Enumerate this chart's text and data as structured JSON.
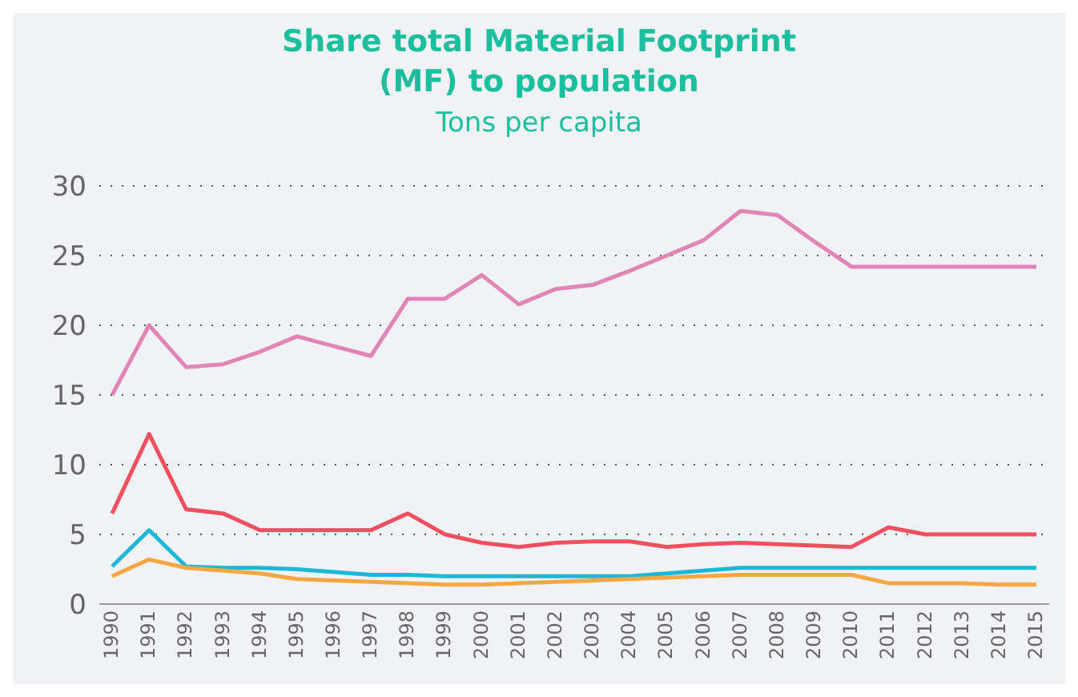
{
  "chart_data": {
    "type": "line",
    "title": "Share total Material Footprint (MF) to population",
    "subtitle": "Tons per capita",
    "categories": [
      "1990",
      "1991",
      "1992",
      "1993",
      "1994",
      "1995",
      "1996",
      "1997",
      "1998",
      "1999",
      "2000",
      "2001",
      "2002",
      "2003",
      "2004",
      "2005",
      "2006",
      "2007",
      "2008",
      "2009",
      "2010",
      "2011",
      "2012",
      "2013",
      "2014",
      "2015"
    ],
    "series": [
      {
        "color": "#e085b5",
        "values": [
          15,
          20,
          17,
          17.2,
          18.1,
          19.2,
          18.5,
          17.8,
          21.9,
          21.9,
          23.6,
          21.5,
          22.6,
          22.9,
          23.9,
          25,
          26.1,
          28.2,
          27.9,
          26,
          24.2,
          24.2,
          24.2,
          24.2,
          24.2,
          24.2
        ]
      },
      {
        "color": "#f0505e",
        "values": [
          6.5,
          12.2,
          6.8,
          6.5,
          5.3,
          5.3,
          5.3,
          5.3,
          6.5,
          5.0,
          4.4,
          4.1,
          4.4,
          4.5,
          4.5,
          4.1,
          4.3,
          4.4,
          4.3,
          4.2,
          4.1,
          5.5,
          5.0,
          5.0,
          5.0,
          5.0
        ]
      },
      {
        "color": "#1cb8d8",
        "values": [
          2.7,
          5.3,
          2.7,
          2.6,
          2.6,
          2.5,
          2.3,
          2.1,
          2.1,
          2.0,
          2.0,
          2.0,
          2.0,
          2.0,
          2.0,
          2.2,
          2.4,
          2.6,
          2.6,
          2.6,
          2.6,
          2.6,
          2.6,
          2.6,
          2.6,
          2.6
        ]
      },
      {
        "color": "#f5a742",
        "values": [
          2.0,
          3.2,
          2.6,
          2.4,
          2.2,
          1.8,
          1.7,
          1.6,
          1.5,
          1.4,
          1.4,
          1.5,
          1.6,
          1.7,
          1.8,
          1.9,
          2.0,
          2.1,
          2.1,
          2.1,
          2.1,
          1.5,
          1.5,
          1.5,
          1.4,
          1.4
        ]
      }
    ],
    "ylim": [
      0,
      30
    ],
    "yticks": [
      0,
      5,
      10,
      15,
      20,
      25,
      30
    ],
    "grid": "y",
    "legend": false,
    "marker": "none",
    "line_style": "solid"
  }
}
